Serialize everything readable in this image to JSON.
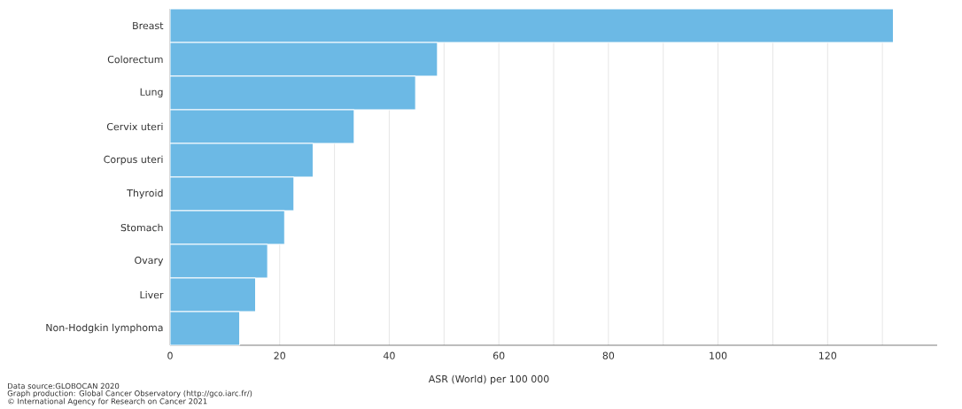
{
  "chart_data": {
    "type": "bar",
    "orientation": "horizontal",
    "categories": [
      "Breast",
      "Colorectum",
      "Lung",
      "Cervix uteri",
      "Corpus uteri",
      "Thyroid",
      "Stomach",
      "Ovary",
      "Liver",
      "Non-Hodgkin lymphoma"
    ],
    "values": [
      132,
      48.8,
      44.8,
      33.6,
      26.1,
      22.6,
      20.9,
      17.8,
      15.6,
      12.7
    ],
    "color": "#6cb9e5",
    "xlim": [
      0,
      140
    ],
    "xticks": [
      0,
      {
        "value": 10,
        "label": null
      },
      20,
      {
        "value": 30,
        "label": null
      },
      40,
      {
        "value": 50,
        "label": null
      },
      60,
      {
        "value": 70,
        "label": null
      },
      80,
      {
        "value": 90,
        "label": null
      },
      100,
      {
        "value": 110,
        "label": null
      },
      120,
      {
        "value": 130,
        "label": null
      }
    ],
    "xlabel": "ASR (World) per 100 000",
    "grid": "x",
    "annotations": [
      "Data source:GLOBOCAN 2020",
      "Graph production: Global Cancer Observatory (http://gco.iarc.fr/)",
      "© International Agency for Research on Cancer 2021"
    ]
  }
}
